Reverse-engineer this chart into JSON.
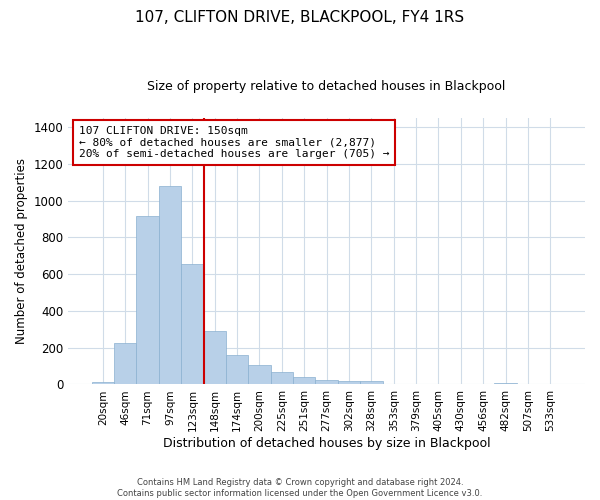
{
  "title": "107, CLIFTON DRIVE, BLACKPOOL, FY4 1RS",
  "subtitle": "Size of property relative to detached houses in Blackpool",
  "xlabel": "Distribution of detached houses by size in Blackpool",
  "ylabel": "Number of detached properties",
  "footer_line1": "Contains HM Land Registry data © Crown copyright and database right 2024.",
  "footer_line2": "Contains public sector information licensed under the Open Government Licence v3.0.",
  "bar_labels": [
    "20sqm",
    "46sqm",
    "71sqm",
    "97sqm",
    "123sqm",
    "148sqm",
    "174sqm",
    "200sqm",
    "225sqm",
    "251sqm",
    "277sqm",
    "302sqm",
    "328sqm",
    "353sqm",
    "379sqm",
    "405sqm",
    "430sqm",
    "456sqm",
    "482sqm",
    "507sqm",
    "533sqm"
  ],
  "bar_values": [
    15,
    228,
    916,
    1079,
    656,
    293,
    158,
    107,
    70,
    40,
    25,
    18,
    17,
    0,
    0,
    0,
    0,
    0,
    10,
    0,
    0
  ],
  "bar_color": "#b8d0e8",
  "bar_edge_color": "#8ab0d0",
  "ylim": [
    0,
    1450
  ],
  "yticks": [
    0,
    200,
    400,
    600,
    800,
    1000,
    1200,
    1400
  ],
  "property_line_x": 4.5,
  "property_line_color": "#cc0000",
  "ann_line1": "107 CLIFTON DRIVE: 150sqm",
  "ann_line2": "← 80% of detached houses are smaller (2,877)",
  "ann_line3": "20% of semi-detached houses are larger (705) →",
  "annotation_box_color": "#ffffff",
  "annotation_box_edge_color": "#cc0000",
  "grid_color": "#d0dce8",
  "title_fontsize": 11,
  "subtitle_fontsize": 9
}
